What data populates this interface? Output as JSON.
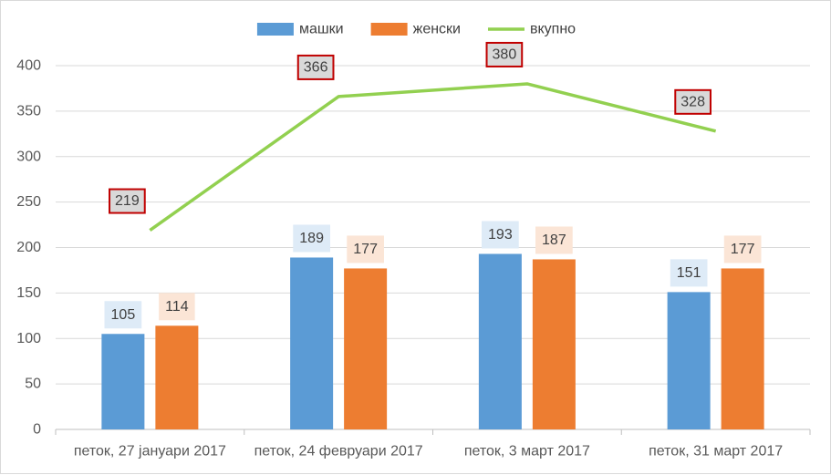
{
  "chart_data": {
    "type": "bar",
    "categories": [
      "петок, 27 јануари 2017",
      "петок, 24 февруари 2017",
      "петок, 3 март 2017",
      "петок, 31 март 2017"
    ],
    "series": [
      {
        "name": "машки",
        "type": "bar",
        "values": [
          105,
          189,
          193,
          151
        ],
        "color": "#5b9bd5",
        "label_bg": "#deebf7"
      },
      {
        "name": "женски",
        "type": "bar",
        "values": [
          114,
          177,
          187,
          177
        ],
        "color": "#ed7d31",
        "label_bg": "#fbe5d6"
      },
      {
        "name": "вкупно",
        "type": "line",
        "values": [
          219,
          366,
          380,
          328
        ],
        "color": "#92d050",
        "label_bg": "#d9d9d9",
        "label_border": "#c00000"
      }
    ],
    "ylim": [
      0,
      400
    ],
    "yticks": [
      0,
      50,
      100,
      150,
      200,
      250,
      300,
      350,
      400
    ],
    "grid": true,
    "legend": "top-center",
    "title": "",
    "xlabel": "",
    "ylabel": ""
  }
}
